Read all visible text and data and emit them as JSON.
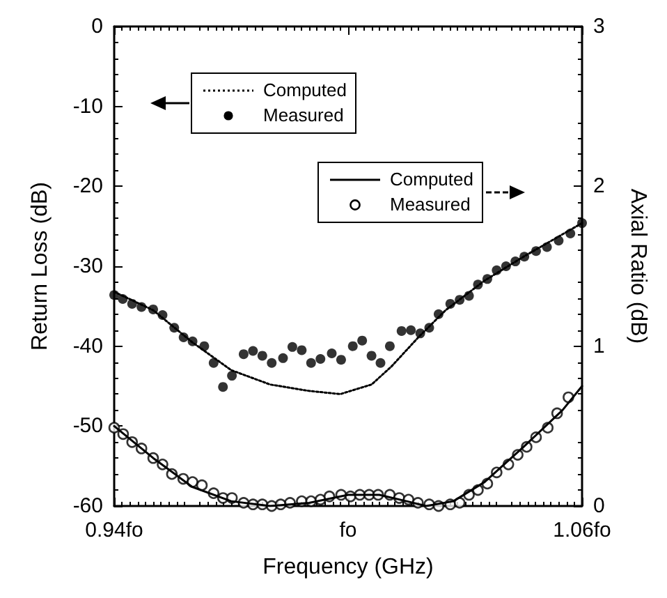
{
  "chart_data": {
    "type": "line",
    "xlabel": "Frequency (GHz)",
    "ylabel": "Return Loss (dB)",
    "y2label": "Axial Ratio (dB)",
    "xlim": [
      0.94,
      1.06
    ],
    "xticks": [
      {
        "value": 0.94,
        "label": "0.94fo"
      },
      {
        "value": 1.0,
        "label": "fo"
      },
      {
        "value": 1.06,
        "label": "1.06fo"
      }
    ],
    "ylim": [
      -60,
      0
    ],
    "yticks": [
      -60,
      -50,
      -40,
      -30,
      -20,
      -10,
      0
    ],
    "y2lim": [
      0,
      3
    ],
    "y2ticks": [
      0,
      1,
      2,
      3
    ],
    "grid": false,
    "legend": "top",
    "series": [
      {
        "name": "Computed",
        "axis": "y",
        "color": "#000000",
        "line_style": "dotted",
        "marker": "none",
        "x": [
          0.94,
          0.95,
          0.96,
          0.97,
          0.98,
          0.99,
          0.998,
          1.006,
          1.011,
          1.018,
          1.025,
          1.035,
          1.045,
          1.06
        ],
        "values": [
          -33.2,
          -35.5,
          -39.5,
          -43.0,
          -44.8,
          -45.6,
          -46.0,
          -44.8,
          -42.6,
          -38.9,
          -35.5,
          -31.8,
          -28.8,
          -24.6
        ]
      },
      {
        "name": "Measured",
        "type": "scatter",
        "axis": "y",
        "color": "#000000",
        "marker": "circle",
        "x": [
          0.94,
          0.9422,
          0.9446,
          0.947,
          0.95,
          0.9524,
          0.9554,
          0.9578,
          0.9601,
          0.9631,
          0.9655,
          0.9679,
          0.9702,
          0.9732,
          0.9756,
          0.978,
          0.9804,
          0.9833,
          0.9857,
          0.9881,
          0.9905,
          0.9929,
          0.9958,
          0.9982,
          1.0012,
          1.0036,
          1.006,
          1.0083,
          1.0107,
          1.0137,
          1.0161,
          1.0185,
          1.0208,
          1.0232,
          1.0262,
          1.0286,
          1.031,
          1.0333,
          1.0357,
          1.0381,
          1.0405,
          1.0429,
          1.0452,
          1.0482,
          1.051,
          1.054,
          1.057,
          1.06
        ],
        "values": [
          -33.6,
          -34.1,
          -34.7,
          -35.1,
          -35.4,
          -36.1,
          -37.7,
          -38.9,
          -39.4,
          -40.0,
          -42.1,
          -45.1,
          -43.7,
          -41.0,
          -40.6,
          -41.2,
          -42.1,
          -41.5,
          -40.1,
          -40.5,
          -42.1,
          -41.6,
          -40.9,
          -41.7,
          -40.0,
          -39.3,
          -41.2,
          -42.1,
          -40.0,
          -38.1,
          -38.0,
          -38.4,
          -37.7,
          -36.0,
          -34.7,
          -34.2,
          -33.7,
          -32.3,
          -31.6,
          -30.5,
          -30.0,
          -29.4,
          -28.8,
          -28.1,
          -27.6,
          -26.8,
          -25.9,
          -24.6
        ]
      },
      {
        "name": "Computed",
        "axis": "y2",
        "color": "#000000",
        "line_style": "solid",
        "marker": "none",
        "x": [
          0.94,
          0.95,
          0.96,
          0.97,
          0.98,
          0.99,
          1.0,
          1.008,
          1.015,
          1.02,
          1.027,
          1.035,
          1.045,
          1.055,
          1.06
        ],
        "values": [
          0.5,
          0.3,
          0.12,
          0.03,
          0.0,
          0.02,
          0.07,
          0.07,
          0.03,
          0.0,
          0.03,
          0.15,
          0.37,
          0.6,
          0.75
        ]
      },
      {
        "name": "Measured",
        "type": "scatter",
        "axis": "y2",
        "color": "#000000",
        "marker": "circle",
        "x": [
          0.94,
          0.9423,
          0.9446,
          0.947,
          0.95,
          0.9524,
          0.9548,
          0.9577,
          0.9601,
          0.9625,
          0.9655,
          0.9679,
          0.9702,
          0.9732,
          0.9756,
          0.978,
          0.9804,
          0.9827,
          0.9851,
          0.9881,
          0.9905,
          0.9929,
          0.9952,
          0.9982,
          1.0006,
          1.003,
          1.0054,
          1.0077,
          1.0107,
          1.0131,
          1.0155,
          1.0179,
          1.0208,
          1.0232,
          1.0262,
          1.0286,
          1.031,
          1.0333,
          1.0357,
          1.0381,
          1.0411,
          1.0435,
          1.0458,
          1.0482,
          1.0512,
          1.0536,
          1.0565
        ],
        "values": [
          0.49,
          0.45,
          0.4,
          0.36,
          0.3,
          0.26,
          0.2,
          0.17,
          0.15,
          0.13,
          0.08,
          0.05,
          0.05,
          0.02,
          0.01,
          0.01,
          0.0,
          0.01,
          0.02,
          0.03,
          0.03,
          0.04,
          0.06,
          0.07,
          0.06,
          0.07,
          0.07,
          0.07,
          0.07,
          0.05,
          0.04,
          0.02,
          0.01,
          0.0,
          0.01,
          0.02,
          0.07,
          0.1,
          0.14,
          0.21,
          0.26,
          0.32,
          0.37,
          0.43,
          0.49,
          0.58,
          0.68
        ]
      }
    ]
  }
}
